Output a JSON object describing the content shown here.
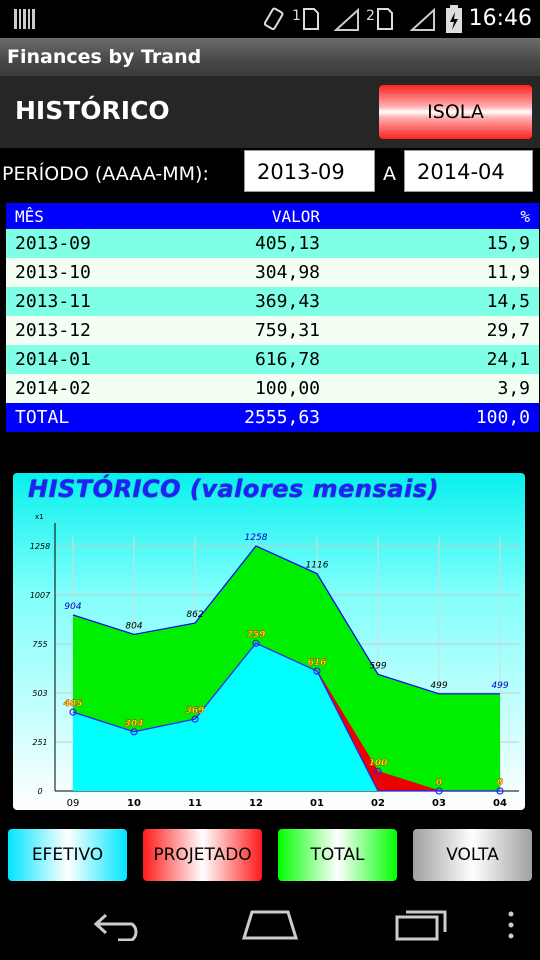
{
  "status": {
    "time": "16:46",
    "sim1": "1",
    "sim2": "2"
  },
  "app_title": "Finances by Trand",
  "header": {
    "title": "HISTÓRICO",
    "isola_label": "ISOLA"
  },
  "period": {
    "label": "PERÍODO (AAAA-MM):",
    "from": "2013-09",
    "separator": "A",
    "to": "2014-04"
  },
  "table": {
    "headers": {
      "month": "MÊS",
      "value": "VALOR",
      "pct": "%"
    },
    "rows": [
      {
        "month": "2013-09",
        "value": "405,13",
        "pct": "15,9"
      },
      {
        "month": "2013-10",
        "value": "304,98",
        "pct": "11,9"
      },
      {
        "month": "2013-11",
        "value": "369,43",
        "pct": "14,5"
      },
      {
        "month": "2013-12",
        "value": "759,31",
        "pct": "29,7"
      },
      {
        "month": "2014-01",
        "value": "616,78",
        "pct": "24,1"
      },
      {
        "month": "2014-02",
        "value": "100,00",
        "pct": "3,9"
      }
    ],
    "total": {
      "label": "TOTAL",
      "value": "2555,63",
      "pct": "100,0"
    }
  },
  "chart_data": {
    "type": "area",
    "title": "HISTÓRICO (valores mensais)",
    "y_unit_label": "x1",
    "categories": [
      "09",
      "10",
      "11",
      "12",
      "01",
      "02",
      "03",
      "04"
    ],
    "y_ticks": [
      0,
      251,
      503,
      755,
      1007,
      1258
    ],
    "ylim": [
      0,
      1258
    ],
    "grid": true,
    "series": [
      {
        "key": "total",
        "color": "#00ee00",
        "line_color": "#0000ff",
        "label_color": "#000000",
        "values": [
          904,
          804,
          862,
          1258,
          1116,
          599,
          499,
          499
        ],
        "labels": [
          "904",
          "804",
          "862",
          "1258",
          "1116",
          "599",
          "499",
          "499"
        ]
      },
      {
        "key": "projetado",
        "color": "#ee0000",
        "line_color": "#ee0000",
        "label_color": "#ffff00",
        "values": [
          405,
          304,
          369,
          759,
          616,
          100,
          0,
          0
        ],
        "labels": [
          "405",
          "304",
          "369",
          "759",
          "616",
          "100",
          "0",
          "0"
        ]
      },
      {
        "key": "efetivo",
        "color": "#00ffff",
        "line_color": "#2222ff",
        "label_color": "#ff00ff",
        "values": [
          405,
          304,
          369,
          759,
          616,
          0,
          0,
          0
        ]
      }
    ]
  },
  "buttons": {
    "efetivo": "EFETIVO",
    "projetado": "PROJETADO",
    "total": "TOTAL",
    "volta": "VOLTA"
  }
}
